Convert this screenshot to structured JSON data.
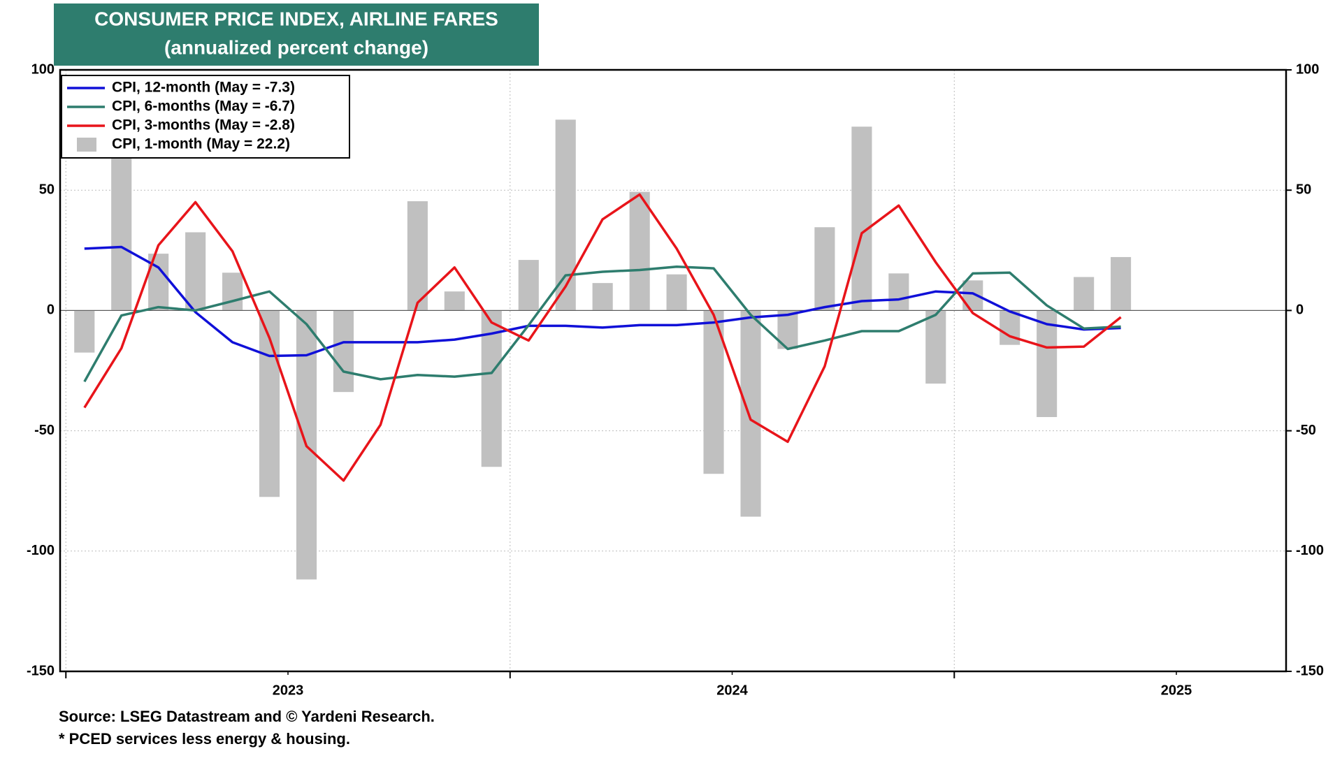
{
  "chart_data": {
    "type": "combo",
    "title": "CONSUMER PRICE INDEX, AIRLINE FARES",
    "subtitle": "(annualized percent change)",
    "x": [
      2023.0417,
      2023.125,
      2023.2083,
      2023.2917,
      2023.375,
      2023.4583,
      2023.5417,
      2023.625,
      2023.7083,
      2023.7917,
      2023.875,
      2023.9583,
      2024.0417,
      2024.125,
      2024.2083,
      2024.2917,
      2024.375,
      2024.4583,
      2024.5417,
      2024.625,
      2024.7083,
      2024.7917,
      2024.875,
      2024.9583,
      2025.0417,
      2025.125,
      2025.2083,
      2025.2917,
      2025.375
    ],
    "xlim": [
      2022.987,
      2025.747
    ],
    "xticks": [
      2023,
      2024,
      2025
    ],
    "xlabels": [
      {
        "value": 2023.5,
        "label": "2023"
      },
      {
        "value": 2024.5,
        "label": "2024"
      },
      {
        "value": 2025.5,
        "label": "2025"
      }
    ],
    "ylim": [
      -150,
      100
    ],
    "yticks": [
      -150,
      -100,
      -50,
      0,
      50,
      100
    ],
    "y2lim": [
      -150,
      100
    ],
    "y2ticks": [
      -150,
      -100,
      -50,
      0,
      50,
      100
    ],
    "grid": true,
    "legend": "upper left",
    "series": [
      {
        "name": "CPI, 12-month (May = -7.3)",
        "type": "line",
        "color": "#1010d8",
        "values": [
          25.7,
          26.4,
          17.9,
          -0.7,
          -13.2,
          -18.9,
          -18.6,
          -13.2,
          -13.2,
          -13.2,
          -12.1,
          -9.6,
          -6.4,
          -6.4,
          -7.1,
          -6.1,
          -6.1,
          -5.0,
          -2.9,
          -1.8,
          1.4,
          3.9,
          4.6,
          7.9,
          7.1,
          -0.4,
          -5.7,
          -7.9,
          -7.3
        ]
      },
      {
        "name": "CPI, 6-months (May = -6.7)",
        "type": "line",
        "color": "#2e7d6e",
        "values": [
          -29.6,
          -2.1,
          1.4,
          0.0,
          3.9,
          7.9,
          -5.7,
          -25.4,
          -28.6,
          -26.8,
          -27.5,
          -26.0,
          -6.1,
          14.6,
          16.1,
          16.8,
          18.2,
          17.5,
          -1.8,
          -16.0,
          -12.5,
          -8.6,
          -8.6,
          -1.8,
          15.4,
          15.7,
          2.1,
          -7.5,
          -6.7
        ]
      },
      {
        "name": "CPI, 3-months (May = -2.8)",
        "type": "line",
        "color": "#e8141a",
        "values": [
          -40.4,
          -15.7,
          27.1,
          45.0,
          24.6,
          -11.4,
          -56.4,
          -70.7,
          -47.5,
          3.2,
          17.9,
          -5.0,
          -12.5,
          10.0,
          37.9,
          48.2,
          25.7,
          -1.8,
          -45.4,
          -54.6,
          -23.2,
          32.1,
          43.6,
          20.0,
          -1.1,
          -10.7,
          -15.4,
          -15.0,
          -2.8
        ]
      },
      {
        "name": "CPI, 1-month (May = 22.2)",
        "type": "bar",
        "color": "#c0c0c0",
        "values": [
          -17.5,
          64.0,
          23.6,
          32.5,
          15.7,
          -77.5,
          -111.8,
          -33.9,
          0.0,
          45.4,
          7.9,
          -65.0,
          21.0,
          79.3,
          11.4,
          49.3,
          15.0,
          -67.9,
          -85.7,
          -16.0,
          34.6,
          76.4,
          15.4,
          -30.4,
          12.5,
          -14.3,
          -44.3,
          13.9,
          22.2
        ]
      }
    ],
    "source": "Source: LSEG Datastream and © Yardeni Research.",
    "note": "* PCED services less energy & housing."
  }
}
